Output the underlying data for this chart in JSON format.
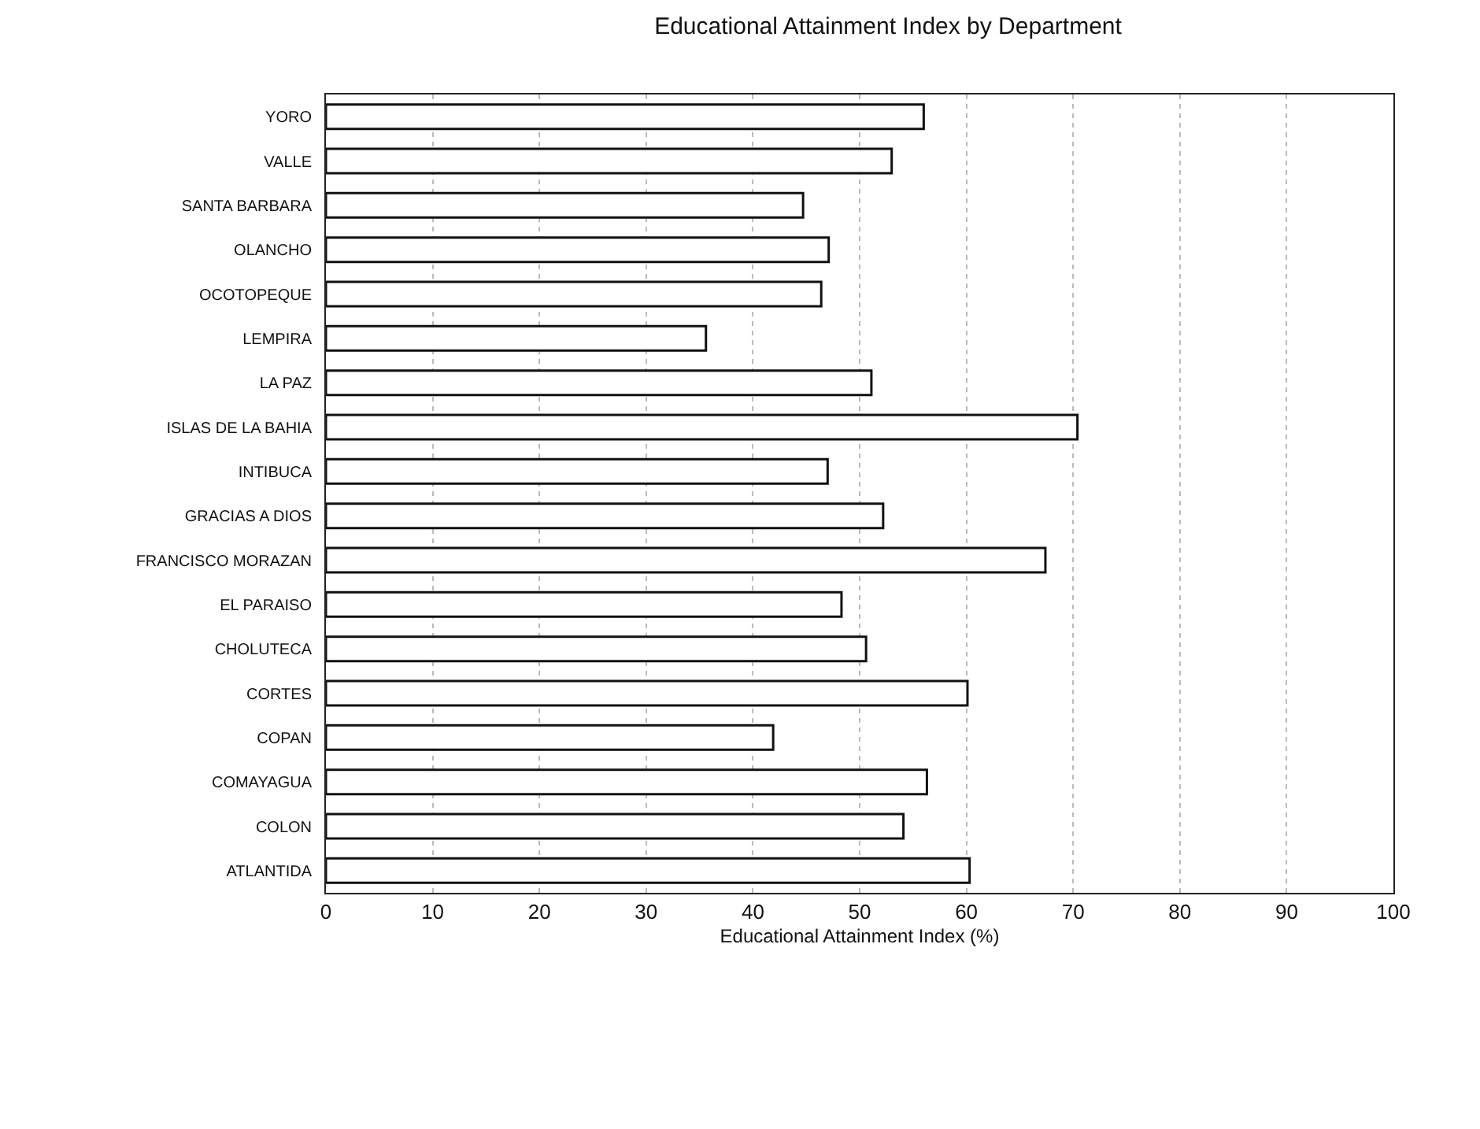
{
  "chart_data": {
    "type": "bar",
    "orientation": "horizontal",
    "title": "Educational Attainment Index by Department",
    "xlabel": "Educational Attainment Index (%)",
    "categories": [
      "YORO",
      "VALLE",
      "SANTA BARBARA",
      "OLANCHO",
      "OCOTOPEQUE",
      "LEMPIRA",
      "LA PAZ",
      "ISLAS DE LA BAHIA",
      "INTIBUCA",
      "GRACIAS A DIOS",
      "FRANCISCO MORAZAN",
      "EL PARAISO",
      "CHOLUTECA",
      "CORTES",
      "COPAN",
      "COMAYAGUA",
      "COLON",
      "ATLANTIDA"
    ],
    "values": [
      56,
      53,
      44.7,
      47.1,
      46.4,
      35.6,
      51.1,
      70.4,
      47,
      52.2,
      67.4,
      48.3,
      50.6,
      60.1,
      41.9,
      56.3,
      54.1,
      60.3
    ],
    "color": "#ffffff",
    "xlim": [
      0,
      100
    ],
    "xticks": [
      0,
      10,
      20,
      30,
      40,
      50,
      60,
      70,
      80,
      90,
      100
    ],
    "grid": "x"
  }
}
